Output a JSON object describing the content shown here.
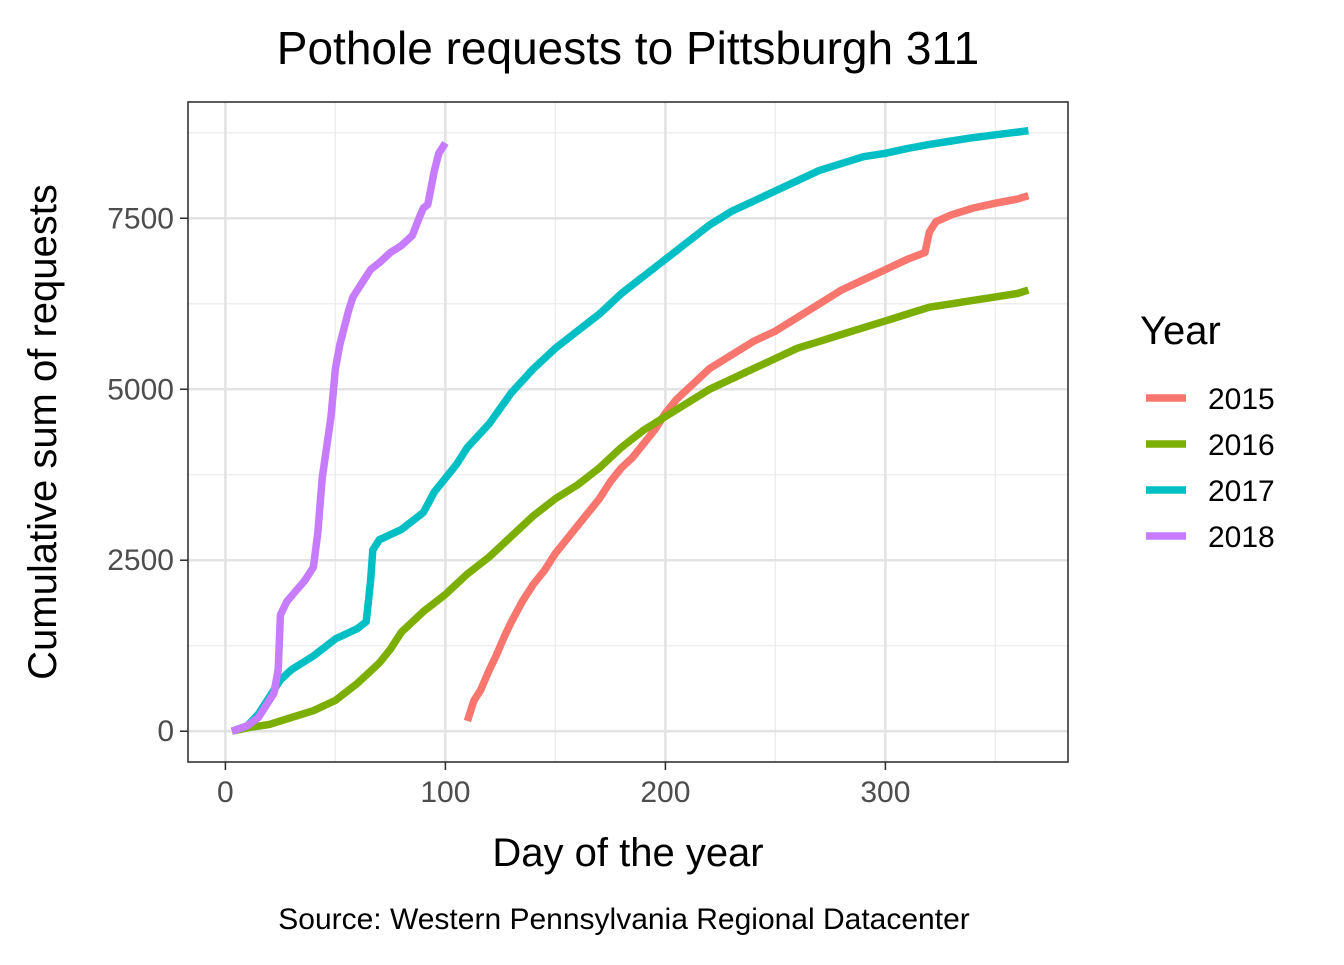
{
  "chart_data": {
    "type": "line",
    "title": "Pothole requests to Pittsburgh 311",
    "xlabel": "Day of the year",
    "ylabel": "Cumulative sum of requests",
    "caption": "Source: Western Pennsylvania Regional Datacenter",
    "legend_title": "Year",
    "legend_position": "right",
    "grid": true,
    "xlim": [
      -17,
      383
    ],
    "ylim": [
      -450,
      9200
    ],
    "x_ticks": [
      0,
      100,
      200,
      300
    ],
    "x_tick_labels": [
      "0",
      "100",
      "200",
      "300"
    ],
    "y_ticks": [
      0,
      2500,
      5000,
      7500
    ],
    "y_tick_labels": [
      "0",
      "2500",
      "5000",
      "7500"
    ],
    "series": [
      {
        "name": "2015",
        "color": "#F8766D",
        "x": [
          110,
          113,
          116,
          120,
          123,
          127,
          130,
          135,
          140,
          145,
          150,
          155,
          160,
          165,
          170,
          175,
          180,
          185,
          190,
          195,
          200,
          205,
          210,
          220,
          230,
          240,
          250,
          260,
          270,
          280,
          290,
          300,
          310,
          318,
          320,
          323,
          330,
          340,
          350,
          360,
          365
        ],
        "y": [
          150,
          450,
          600,
          900,
          1100,
          1400,
          1600,
          1900,
          2150,
          2350,
          2600,
          2800,
          3000,
          3200,
          3400,
          3650,
          3850,
          4000,
          4200,
          4400,
          4650,
          4850,
          5000,
          5300,
          5500,
          5700,
          5850,
          6050,
          6250,
          6450,
          6600,
          6750,
          6900,
          7000,
          7300,
          7450,
          7550,
          7650,
          7720,
          7780,
          7830
        ]
      },
      {
        "name": "2016",
        "color": "#7CAE00",
        "x": [
          3,
          10,
          20,
          30,
          40,
          50,
          60,
          65,
          70,
          75,
          80,
          90,
          100,
          110,
          120,
          130,
          140,
          150,
          160,
          170,
          180,
          190,
          200,
          210,
          220,
          230,
          240,
          250,
          260,
          270,
          280,
          290,
          300,
          310,
          320,
          330,
          340,
          350,
          360,
          365
        ],
        "y": [
          0,
          50,
          100,
          200,
          300,
          450,
          700,
          850,
          1000,
          1200,
          1450,
          1750,
          2000,
          2300,
          2550,
          2850,
          3150,
          3400,
          3600,
          3850,
          4150,
          4400,
          4600,
          4800,
          5000,
          5150,
          5300,
          5450,
          5600,
          5700,
          5800,
          5900,
          6000,
          6100,
          6200,
          6250,
          6300,
          6350,
          6400,
          6450
        ]
      },
      {
        "name": "2017",
        "color": "#00BFC4",
        "x": [
          3,
          10,
          15,
          20,
          25,
          30,
          40,
          50,
          60,
          64,
          66,
          67,
          70,
          80,
          90,
          95,
          100,
          105,
          110,
          120,
          130,
          140,
          150,
          160,
          170,
          180,
          190,
          200,
          210,
          220,
          230,
          240,
          250,
          260,
          270,
          280,
          290,
          300,
          310,
          320,
          330,
          340,
          350,
          360,
          365
        ],
        "y": [
          0,
          80,
          250,
          500,
          750,
          900,
          1100,
          1350,
          1500,
          1600,
          2200,
          2650,
          2800,
          2950,
          3200,
          3500,
          3700,
          3900,
          4150,
          4500,
          4950,
          5300,
          5600,
          5850,
          6100,
          6400,
          6650,
          6900,
          7150,
          7400,
          7600,
          7750,
          7900,
          8050,
          8200,
          8300,
          8400,
          8450,
          8520,
          8580,
          8630,
          8680,
          8720,
          8760,
          8780
        ]
      },
      {
        "name": "2018",
        "color": "#C77CFF",
        "x": [
          3,
          10,
          15,
          20,
          22,
          24,
          25,
          28,
          32,
          36,
          40,
          42,
          44,
          46,
          48,
          50,
          52,
          54,
          56,
          58,
          60,
          62,
          64,
          66,
          70,
          75,
          80,
          85,
          88,
          90,
          92,
          95,
          97,
          100
        ],
        "y": [
          0,
          80,
          200,
          450,
          550,
          900,
          1700,
          1900,
          2050,
          2200,
          2400,
          2900,
          3700,
          4150,
          4600,
          5300,
          5650,
          5900,
          6150,
          6350,
          6450,
          6550,
          6650,
          6750,
          6850,
          7000,
          7100,
          7250,
          7500,
          7650,
          7700,
          8200,
          8450,
          8600
        ]
      }
    ]
  }
}
